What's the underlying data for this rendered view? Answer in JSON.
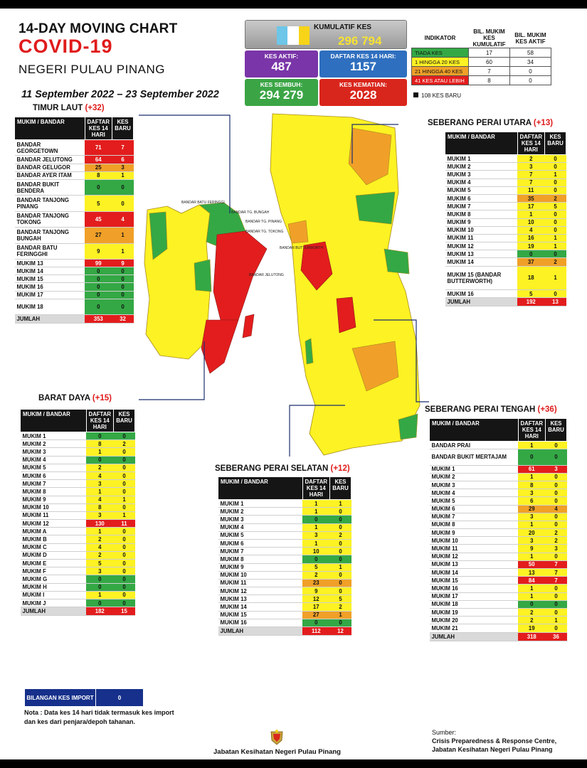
{
  "header": {
    "title1": "14-DAY MOVING CHART",
    "title2": "COVID-19",
    "title3": "NEGERI PULAU PINANG",
    "date_range": "11 September 2022 – 23 September 2022"
  },
  "stats": {
    "kumulatif_label": "KUMULATIF KES",
    "kumulatif": "296 794",
    "aktif_label": "KES AKTIF:",
    "aktif": "487",
    "daftar_label": "DAFTAR KES 14 HARI:",
    "daftar": "1157",
    "sembuh_label": "KES SEMBUH:",
    "sembuh": "294 279",
    "kematian_label": "KES KEMATIAN:",
    "kematian": "2028"
  },
  "flag_colors": [
    "#6ec6e8",
    "#ffffff",
    "#f7d417"
  ],
  "indicator": {
    "headers": [
      "INDIKATOR",
      "BIL. MUKIM KES KUMULATIF",
      "BIL. MUKIM KES AKTIF"
    ],
    "rows": [
      {
        "label": "TIADA KES",
        "color": "g",
        "a": "17",
        "b": "58"
      },
      {
        "label": "1 HINGGA 20 KES",
        "color": "y",
        "a": "60",
        "b": "34"
      },
      {
        "label": "21 HINGGA 40 KES",
        "color": "o",
        "a": "7",
        "b": "0"
      },
      {
        "label": "41 KES ATAU LEBIH",
        "color": "r",
        "a": "8",
        "b": "0"
      }
    ],
    "kes_baru": "108 KES BARU"
  },
  "map_labels": {
    "batu_feringgi": "BANDAR BATU FERINGGI",
    "tg_bungah": "BANDAR TG. BUNGAH",
    "tg_pinang": "BANDAR TG. PINANG",
    "tg_tokong": "BANDAR TG. TOKONG",
    "jelutong": "BANDAR JELUTONG",
    "butterworth": "BANDAR BUTTERWORTH"
  },
  "legend_colors": {
    "g": "#34a845",
    "y": "#fdf223",
    "o": "#f0a028",
    "r": "#e31d1d"
  },
  "sections": [
    {
      "id": "timur-laut",
      "title": "TIMUR LAUT",
      "plus": "(+32)",
      "col1": "MUKIM / BANDAR",
      "col2": "DAFTAR KES 14 HARI",
      "col3": "KES BARU",
      "rows": [
        {
          "name": "BANDAR GEORGETOWN",
          "d": "71",
          "k": "7",
          "c": "r",
          "h": 2
        },
        {
          "name": "BANDAR JELUTONG",
          "d": "64",
          "k": "6",
          "c": "r",
          "h": 1
        },
        {
          "name": "BANDAR GELUGOR",
          "d": "25",
          "k": "3",
          "c": "o",
          "h": 1
        },
        {
          "name": "BANDAR AYER ITAM",
          "d": "8",
          "k": "1",
          "c": "y",
          "h": 1
        },
        {
          "name": "BANDAR BUKIT BENDERA",
          "d": "0",
          "k": "0",
          "c": "g",
          "h": 2
        },
        {
          "name": "BANDAR TANJONG PINANG",
          "d": "5",
          "k": "0",
          "c": "y",
          "h": 2
        },
        {
          "name": "BANDAR TANJONG TOKONG",
          "d": "45",
          "k": "4",
          "c": "r",
          "h": 2
        },
        {
          "name": "BANDAR TANJONG BUNGAH",
          "d": "27",
          "k": "1",
          "c": "o",
          "h": 2
        },
        {
          "name": "BANDAR BATU FERINGGHI",
          "d": "9",
          "k": "1",
          "c": "y",
          "h": 2
        },
        {
          "name": "MUKIM 13",
          "d": "99",
          "k": "9",
          "c": "r",
          "h": 1
        },
        {
          "name": "MUKIM 14",
          "d": "0",
          "k": "0",
          "c": "g",
          "h": 1
        },
        {
          "name": "MUKIM 15",
          "d": "0",
          "k": "0",
          "c": "g",
          "h": 1
        },
        {
          "name": "MUKIM 16",
          "d": "0",
          "k": "0",
          "c": "g",
          "h": 1
        },
        {
          "name": "MUKIM 17",
          "d": "0",
          "k": "0",
          "c": "g",
          "h": 1
        },
        {
          "name": "MUKIM 18",
          "d": "0",
          "k": "0",
          "c": "g",
          "h": 2
        }
      ],
      "jumlah_label": "JUMLAH",
      "jumlah_d": "353",
      "jumlah_k": "32"
    },
    {
      "id": "barat-daya",
      "title": "BARAT DAYA",
      "plus": "(+15)",
      "col1": "MUKIM / BANDAR",
      "col2": "DAFTAR KES 14 HARI",
      "col3": "KES BARU",
      "rows": [
        {
          "name": "MUKIM 1",
          "d": "0",
          "k": "0",
          "c": "g",
          "h": 1
        },
        {
          "name": "MUKIM 2",
          "d": "8",
          "k": "2",
          "c": "y",
          "h": 1
        },
        {
          "name": "MUKIM 3",
          "d": "1",
          "k": "0",
          "c": "y",
          "h": 1
        },
        {
          "name": "MUKIM 4",
          "d": "0",
          "k": "0",
          "c": "g",
          "h": 1
        },
        {
          "name": "MUKIM 5",
          "d": "2",
          "k": "0",
          "c": "y",
          "h": 1
        },
        {
          "name": "MUKIM 6",
          "d": "4",
          "k": "0",
          "c": "y",
          "h": 1
        },
        {
          "name": "MUKIM 7",
          "d": "3",
          "k": "0",
          "c": "y",
          "h": 1
        },
        {
          "name": "MUKIM 8",
          "d": "1",
          "k": "0",
          "c": "y",
          "h": 1
        },
        {
          "name": "MUKIM 9",
          "d": "4",
          "k": "1",
          "c": "y",
          "h": 1
        },
        {
          "name": "MUKIM 10",
          "d": "8",
          "k": "0",
          "c": "y",
          "h": 1
        },
        {
          "name": "MUKIM 11",
          "d": "3",
          "k": "1",
          "c": "y",
          "h": 1
        },
        {
          "name": "MUKIM 12",
          "d": "130",
          "k": "11",
          "c": "r",
          "h": 1
        },
        {
          "name": "MUKIM A",
          "d": "1",
          "k": "0",
          "c": "y",
          "h": 1
        },
        {
          "name": "MUKIM B",
          "d": "2",
          "k": "0",
          "c": "y",
          "h": 1
        },
        {
          "name": "MUKIM C",
          "d": "4",
          "k": "0",
          "c": "y",
          "h": 1
        },
        {
          "name": "MUKIM D",
          "d": "2",
          "k": "0",
          "c": "y",
          "h": 1
        },
        {
          "name": "MUKIM E",
          "d": "5",
          "k": "0",
          "c": "y",
          "h": 1
        },
        {
          "name": "MUKIM F",
          "d": "3",
          "k": "0",
          "c": "y",
          "h": 1
        },
        {
          "name": "MUKIM G",
          "d": "0",
          "k": "0",
          "c": "g",
          "h": 1
        },
        {
          "name": "MUKIM H",
          "d": "0",
          "k": "0",
          "c": "g",
          "h": 1
        },
        {
          "name": "MUKIM I",
          "d": "1",
          "k": "0",
          "c": "y",
          "h": 1
        },
        {
          "name": "MUKIM J",
          "d": "0",
          "k": "0",
          "c": "g",
          "h": 1
        }
      ],
      "jumlah_label": "JUMLAH",
      "jumlah_d": "182",
      "jumlah_k": "15"
    },
    {
      "id": "spu",
      "title": "SEBERANG PERAI UTARA",
      "plus": "(+13)",
      "col1": "MUKIM / BANDAR",
      "col2": "DAFTAR KES 14 HARI",
      "col3": "KES BARU",
      "rows": [
        {
          "name": "MUKIM 1",
          "d": "2",
          "k": "0",
          "c": "y",
          "h": 1
        },
        {
          "name": "MUKIM 2",
          "d": "3",
          "k": "0",
          "c": "y",
          "h": 1
        },
        {
          "name": "MUKIM 3",
          "d": "7",
          "k": "1",
          "c": "y",
          "h": 1
        },
        {
          "name": "MUKIM 4",
          "d": "7",
          "k": "0",
          "c": "y",
          "h": 1
        },
        {
          "name": "MUKIM 5",
          "d": "11",
          "k": "0",
          "c": "y",
          "h": 1
        },
        {
          "name": "MUKIM 6",
          "d": "35",
          "k": "2",
          "c": "o",
          "h": 1
        },
        {
          "name": "MUKIM 7",
          "d": "17",
          "k": "5",
          "c": "y",
          "h": 1
        },
        {
          "name": "MUKIM 8",
          "d": "1",
          "k": "0",
          "c": "y",
          "h": 1
        },
        {
          "name": "MUKIM 9",
          "d": "10",
          "k": "0",
          "c": "y",
          "h": 1
        },
        {
          "name": "MUKIM 10",
          "d": "4",
          "k": "0",
          "c": "y",
          "h": 1
        },
        {
          "name": "MUKIM 11",
          "d": "16",
          "k": "1",
          "c": "y",
          "h": 1
        },
        {
          "name": "MUKIM 12",
          "d": "19",
          "k": "1",
          "c": "y",
          "h": 1
        },
        {
          "name": "MUKIM 13",
          "d": "0",
          "k": "0",
          "c": "g",
          "h": 1
        },
        {
          "name": "MUKIM 14",
          "d": "37",
          "k": "2",
          "c": "o",
          "h": 1
        },
        {
          "name": "MUKIM 15 (BANDAR BUTTERWORTH)",
          "d": "18",
          "k": "1",
          "c": "y",
          "h": 3
        },
        {
          "name": "MUKIM 16",
          "d": "5",
          "k": "0",
          "c": "y",
          "h": 1
        }
      ],
      "jumlah_label": "JUMLAH",
      "jumlah_d": "192",
      "jumlah_k": "13"
    },
    {
      "id": "sps",
      "title": "SEBERANG PERAI SELATAN",
      "plus": "(+12)",
      "col1": "MUKIM / BANDAR",
      "col2": "DAFTAR KES 14 HARI",
      "col3": "KES BARU",
      "rows": [
        {
          "name": "MUKIM 1",
          "d": "1",
          "k": "1",
          "c": "y",
          "h": 1
        },
        {
          "name": "MUKIM 2",
          "d": "1",
          "k": "0",
          "c": "y",
          "h": 1
        },
        {
          "name": "MUKIM 3",
          "d": "0",
          "k": "0",
          "c": "g",
          "h": 1
        },
        {
          "name": "MUKIM 4",
          "d": "1",
          "k": "0",
          "c": "y",
          "h": 1
        },
        {
          "name": "MUKIM 5",
          "d": "3",
          "k": "2",
          "c": "y",
          "h": 1
        },
        {
          "name": "MUKIM 6",
          "d": "1",
          "k": "0",
          "c": "y",
          "h": 1
        },
        {
          "name": "MUKIM 7",
          "d": "10",
          "k": "0",
          "c": "y",
          "h": 1
        },
        {
          "name": "MUKIM 8",
          "d": "0",
          "k": "0",
          "c": "g",
          "h": 1
        },
        {
          "name": "MUKIM 9",
          "d": "5",
          "k": "1",
          "c": "y",
          "h": 1
        },
        {
          "name": "MUKIM 10",
          "d": "2",
          "k": "0",
          "c": "y",
          "h": 1
        },
        {
          "name": "MUKIM 11",
          "d": "23",
          "k": "0",
          "c": "o",
          "h": 1
        },
        {
          "name": "MUKIM 12",
          "d": "9",
          "k": "0",
          "c": "y",
          "h": 1
        },
        {
          "name": "MUKIM 13",
          "d": "12",
          "k": "5",
          "c": "y",
          "h": 1
        },
        {
          "name": "MUKIM 14",
          "d": "17",
          "k": "2",
          "c": "y",
          "h": 1
        },
        {
          "name": "MUKIM 15",
          "d": "27",
          "k": "1",
          "c": "o",
          "h": 1
        },
        {
          "name": "MUKIM 16",
          "d": "0",
          "k": "0",
          "c": "g",
          "h": 1
        }
      ],
      "jumlah_label": "JUMLAH",
      "jumlah_d": "112",
      "jumlah_k": "12"
    },
    {
      "id": "spt",
      "title": "SEBERANG PERAI TENGAH",
      "plus": "(+36)",
      "col1": "MUKIM / BANDAR",
      "col2": "DAFTAR KES 14 HARI",
      "col3": "KES BARU",
      "rows": [
        {
          "name": "BANDAR PRAI",
          "d": "1",
          "k": "0",
          "c": "y",
          "h": 1
        },
        {
          "name": "BANDAR BUKIT MERTAJAM",
          "d": "0",
          "k": "0",
          "c": "g",
          "h": 2
        },
        {
          "name": "MUKIM 1",
          "d": "61",
          "k": "3",
          "c": "r",
          "h": 1
        },
        {
          "name": "MUKIM 2",
          "d": "1",
          "k": "0",
          "c": "y",
          "h": 1
        },
        {
          "name": "MUKIM 3",
          "d": "8",
          "k": "0",
          "c": "y",
          "h": 1
        },
        {
          "name": "MUKIM 4",
          "d": "3",
          "k": "0",
          "c": "y",
          "h": 1
        },
        {
          "name": "MUKIM 5",
          "d": "6",
          "k": "0",
          "c": "y",
          "h": 1
        },
        {
          "name": "MUKIM 6",
          "d": "29",
          "k": "4",
          "c": "o",
          "h": 1
        },
        {
          "name": "MUKIM 7",
          "d": "3",
          "k": "0",
          "c": "y",
          "h": 1
        },
        {
          "name": "MUKIM 8",
          "d": "1",
          "k": "0",
          "c": "y",
          "h": 1
        },
        {
          "name": "MUKIM 9",
          "d": "20",
          "k": "2",
          "c": "y",
          "h": 1
        },
        {
          "name": "MUKIM 10",
          "d": "3",
          "k": "2",
          "c": "y",
          "h": 1
        },
        {
          "name": "MUKIM 11",
          "d": "9",
          "k": "3",
          "c": "y",
          "h": 1
        },
        {
          "name": "MUKIM 12",
          "d": "1",
          "k": "0",
          "c": "y",
          "h": 1
        },
        {
          "name": "MUKIM 13",
          "d": "50",
          "k": "7",
          "c": "r",
          "h": 1
        },
        {
          "name": "MUKIM 14",
          "d": "13",
          "k": "7",
          "c": "y",
          "h": 1
        },
        {
          "name": "MUKIM 15",
          "d": "84",
          "k": "7",
          "c": "r",
          "h": 1
        },
        {
          "name": "MUKIM 16",
          "d": "1",
          "k": "0",
          "c": "y",
          "h": 1
        },
        {
          "name": "MUKIM 17",
          "d": "1",
          "k": "0",
          "c": "y",
          "h": 1
        },
        {
          "name": "MUKIM 18",
          "d": "0",
          "k": "0",
          "c": "g",
          "h": 1
        },
        {
          "name": "MUKIM 19",
          "d": "2",
          "k": "0",
          "c": "y",
          "h": 1
        },
        {
          "name": "MUKIM 20",
          "d": "2",
          "k": "1",
          "c": "y",
          "h": 1
        },
        {
          "name": "MUKIM 21",
          "d": "19",
          "k": "0",
          "c": "y",
          "h": 1
        }
      ],
      "jumlah_label": "JUMLAH",
      "jumlah_d": "318",
      "jumlah_k": "36"
    }
  ],
  "import": {
    "label": "BILANGAN KES IMPORT",
    "value": "0"
  },
  "note": "Nota : Data kes 14 hari tidak termasuk kes import dan kes dari penjara/depoh tahanan.",
  "footer": {
    "department": "Jabatan Kesihatan Negeri Pulau Pinang",
    "sumber_label": "Sumber:",
    "sumber_1": "Crisis Preparedness & Response Centre,",
    "sumber_2": "Jabatan Kesihatan Negeri Pulau Pinang"
  }
}
